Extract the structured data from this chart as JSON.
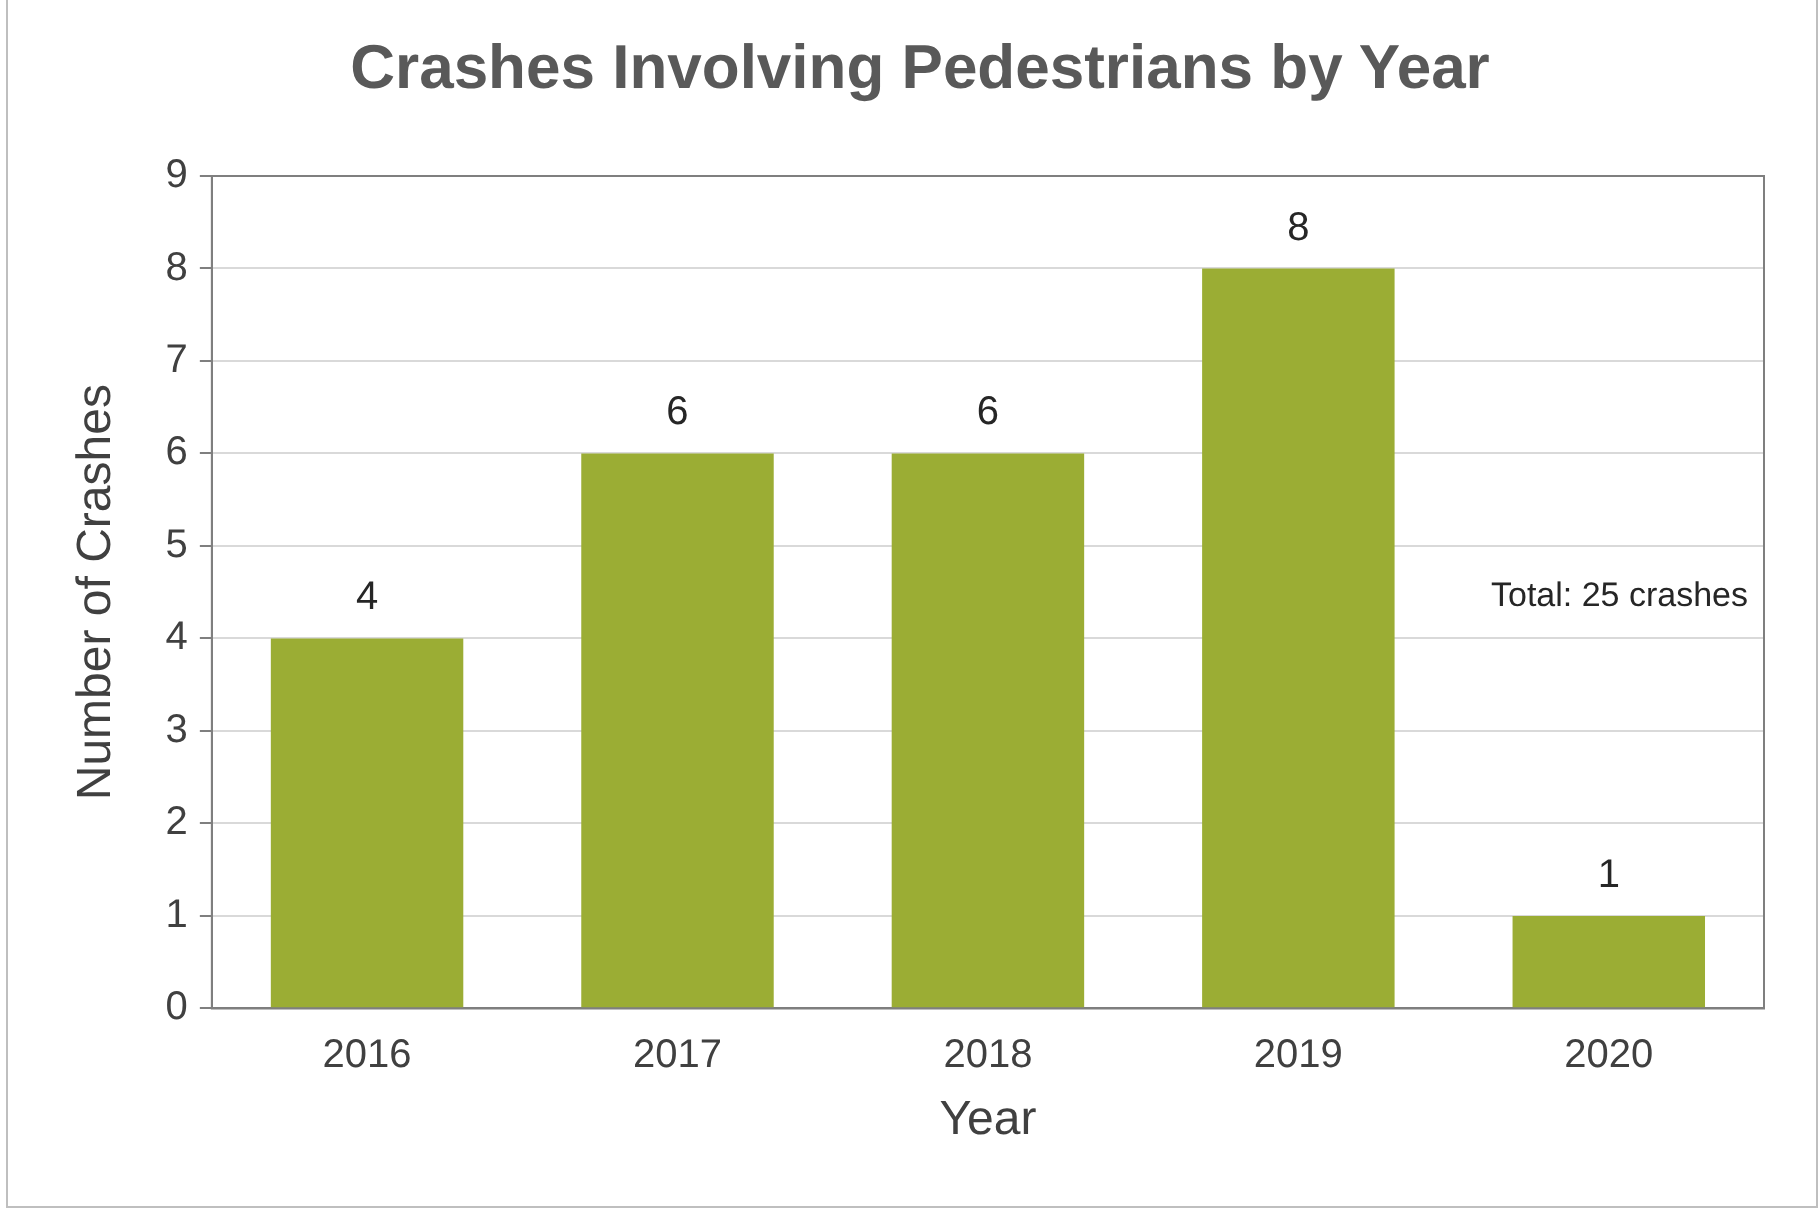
{
  "chart_data": {
    "type": "bar",
    "title": "Crashes Involving Pedestrians by Year",
    "xlabel": "Year",
    "ylabel": "Number of Crashes",
    "categories": [
      "2016",
      "2017",
      "2018",
      "2019",
      "2020"
    ],
    "values": [
      4,
      6,
      6,
      8,
      1
    ],
    "color": "#9bad34",
    "ylim": [
      0,
      9
    ],
    "yticks": [
      0,
      1,
      2,
      3,
      4,
      5,
      6,
      7,
      8,
      9
    ],
    "grid": "y",
    "data_labels": true,
    "legend": false,
    "annotations": [
      "Total: 25 crashes"
    ]
  }
}
